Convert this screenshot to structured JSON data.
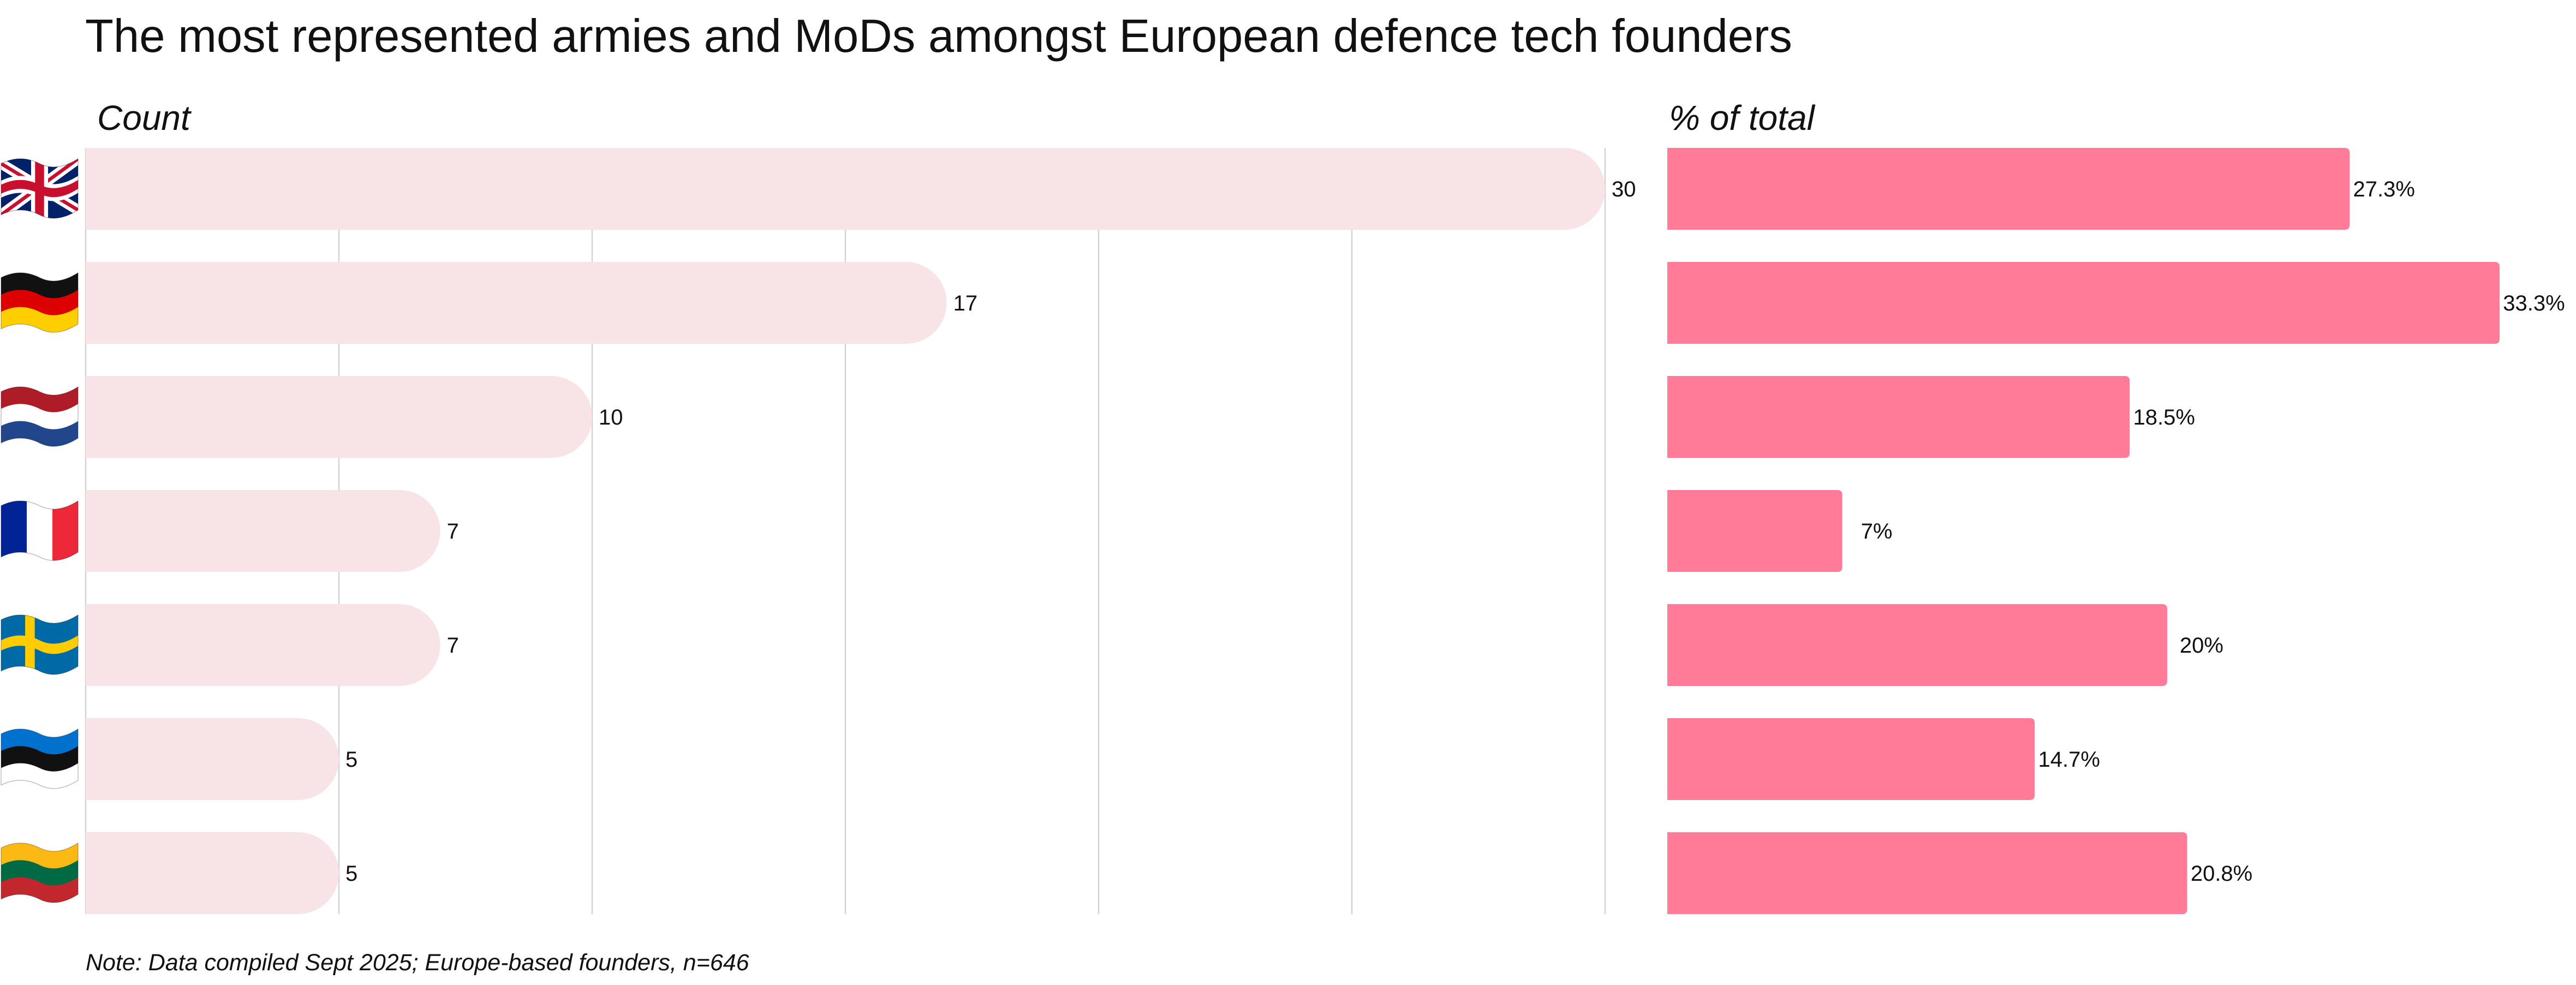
{
  "title": "The most represented armies and MoDs amongst European defence tech founders",
  "note": "Note: Data compiled Sept 2025; Europe-based founders, n=646",
  "colors": {
    "text": "#111111",
    "grid": "#D3D3D3"
  },
  "chart_data": [
    {
      "type": "bar",
      "orientation": "horizontal",
      "panel_header": "Count",
      "category_icons": [
        "flag-united-kingdom-icon",
        "flag-germany-icon",
        "flag-netherlands-icon",
        "flag-france-icon",
        "flag-sweden-icon",
        "flag-estonia-icon",
        "flag-lithuania-icon"
      ],
      "values": [
        30,
        17,
        10,
        7,
        7,
        5,
        5
      ],
      "data_labels": [
        "30",
        "17",
        "10",
        "7",
        "7",
        "5",
        "5"
      ],
      "xlim": [
        0,
        30
      ],
      "grid": true,
      "grid_step": 5,
      "bar_color": "#F8E3E7"
    },
    {
      "type": "bar",
      "orientation": "horizontal",
      "panel_header": "% of total",
      "category_icons": [
        "flag-united-kingdom-icon",
        "flag-germany-icon",
        "flag-netherlands-icon",
        "flag-france-icon",
        "flag-sweden-icon",
        "flag-estonia-icon",
        "flag-lithuania-icon"
      ],
      "values": [
        27.3,
        33.3,
        18.5,
        7,
        20,
        14.7,
        20.8
      ],
      "data_labels": [
        "27.3%",
        "33.3%",
        "18.5%",
        "7%",
        "20%",
        "14.7%",
        "20.8%"
      ],
      "grid": false,
      "bar_color": "#FF7B97"
    }
  ]
}
